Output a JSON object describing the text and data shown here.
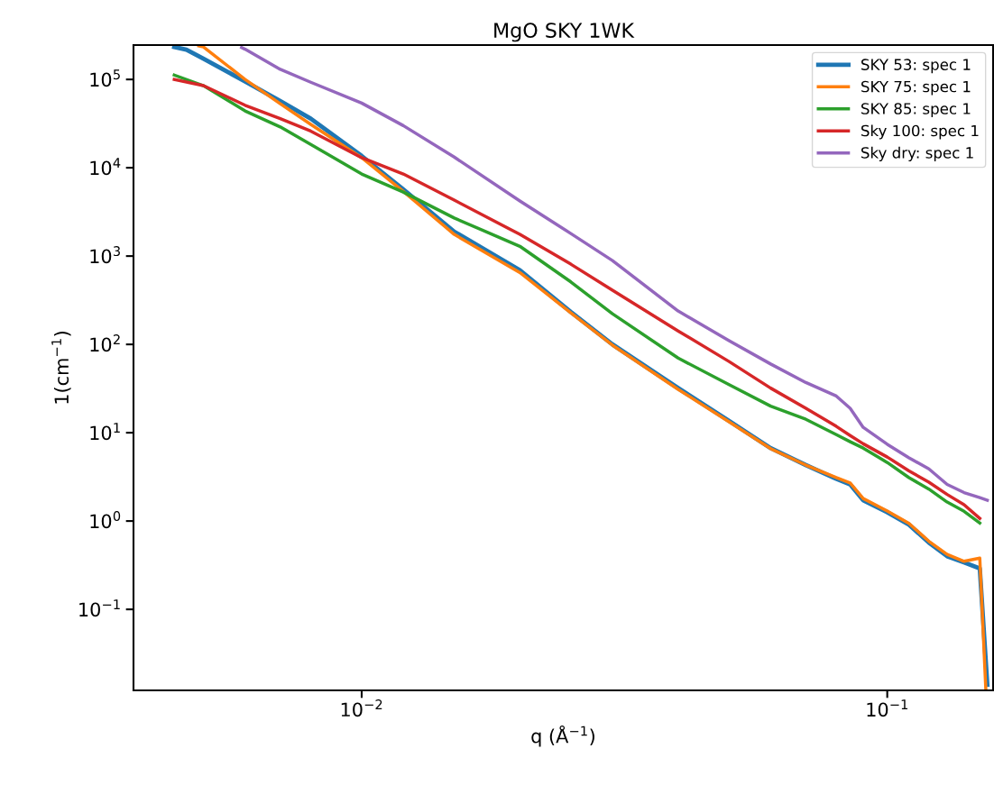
{
  "chart_data": {
    "type": "line",
    "title": "MgO SKY 1WK",
    "xlabel": "q (Å$^{−1}$)",
    "ylabel": "1(cm$^{−1}$)",
    "log": "xy",
    "xlim": [
      0.00368,
      0.159
    ],
    "ylim": [
      0.0121,
      245000
    ],
    "xticks": [
      {
        "value": 0.01,
        "label": "10$^{−2}$"
      },
      {
        "value": 0.1,
        "label": "10$^{−1}$"
      }
    ],
    "yticks": [
      {
        "value": 0.1,
        "label": "10$^{−1}$"
      },
      {
        "value": 1,
        "label": "10$^{0}$"
      },
      {
        "value": 10,
        "label": "10$^{1}$"
      },
      {
        "value": 100,
        "label": "10$^{2}$"
      },
      {
        "value": 1000,
        "label": "10$^{3}$"
      },
      {
        "value": 10000,
        "label": "10$^{4}$"
      },
      {
        "value": 100000,
        "label": "10$^{5}$"
      }
    ],
    "grid": false,
    "legend": "top right",
    "marker": "none",
    "line_style": "solid",
    "series": [
      {
        "name": "SKY 53: spec 1",
        "color": "#1f77b4",
        "x": [
          0.0044,
          0.00464,
          0.005,
          0.006,
          0.007,
          0.008,
          0.01,
          0.012,
          0.015,
          0.02,
          0.025,
          0.03,
          0.04,
          0.05,
          0.06,
          0.07,
          0.08,
          0.085,
          0.09,
          0.1,
          0.11,
          0.12,
          0.13,
          0.14,
          0.15,
          0.155
        ],
        "values": [
          233000,
          217000,
          172000,
          95000,
          57000,
          36000,
          13600,
          5700,
          1890,
          690,
          233,
          100,
          32,
          13.6,
          6.7,
          4.3,
          3.0,
          2.6,
          1.72,
          1.26,
          0.91,
          0.57,
          0.4,
          0.34,
          0.29,
          0.014
        ]
      },
      {
        "name": "SKY 75: spec 1",
        "color": "#ff7f0e",
        "x": [
          0.0049,
          0.005,
          0.006,
          0.007,
          0.008,
          0.01,
          0.012,
          0.015,
          0.02,
          0.025,
          0.03,
          0.04,
          0.05,
          0.06,
          0.07,
          0.08,
          0.085,
          0.09,
          0.1,
          0.11,
          0.12,
          0.13,
          0.14,
          0.15,
          0.154
        ],
        "values": [
          240000,
          233000,
          100000,
          53000,
          31000,
          13000,
          5400,
          1760,
          650,
          228,
          98,
          31,
          13.3,
          6.6,
          4.3,
          3.1,
          2.7,
          1.8,
          1.3,
          0.94,
          0.59,
          0.42,
          0.35,
          0.38,
          0.0125
        ]
      },
      {
        "name": "SKY 85: spec 1",
        "color": "#2ca02c",
        "x": [
          0.0044,
          0.005,
          0.006,
          0.007,
          0.008,
          0.01,
          0.012,
          0.015,
          0.02,
          0.025,
          0.03,
          0.04,
          0.05,
          0.06,
          0.07,
          0.08,
          0.085,
          0.09,
          0.1,
          0.11,
          0.12,
          0.13,
          0.14,
          0.15
        ],
        "values": [
          112000,
          85000,
          44000,
          29000,
          18400,
          8500,
          5300,
          2700,
          1290,
          510,
          222,
          70,
          35,
          20,
          14.2,
          9.5,
          7.9,
          6.7,
          4.6,
          3.1,
          2.3,
          1.64,
          1.29,
          0.95
        ]
      },
      {
        "name": "Sky 100: spec 1",
        "color": "#d62728",
        "x": [
          0.0044,
          0.005,
          0.006,
          0.007,
          0.008,
          0.01,
          0.012,
          0.015,
          0.02,
          0.025,
          0.03,
          0.04,
          0.05,
          0.06,
          0.07,
          0.08,
          0.085,
          0.09,
          0.1,
          0.11,
          0.12,
          0.13,
          0.14,
          0.15
        ],
        "values": [
          100000,
          85000,
          51000,
          36000,
          26000,
          13000,
          8500,
          4300,
          1760,
          810,
          410,
          142,
          64,
          32,
          18.9,
          11.8,
          9.3,
          7.5,
          5.3,
          3.7,
          2.75,
          2.0,
          1.53,
          1.07
        ]
      },
      {
        "name": "Sky dry: spec 1",
        "color": "#9467bd",
        "x": [
          0.00591,
          0.006,
          0.007,
          0.008,
          0.01,
          0.012,
          0.015,
          0.02,
          0.025,
          0.03,
          0.04,
          0.05,
          0.06,
          0.07,
          0.08,
          0.085,
          0.09,
          0.1,
          0.11,
          0.12,
          0.13,
          0.14,
          0.15,
          0.155
        ],
        "values": [
          230000,
          220000,
          130000,
          93000,
          54000,
          30000,
          13200,
          4200,
          1800,
          890,
          239,
          110,
          60,
          37,
          26,
          18.9,
          11.5,
          7.4,
          5.2,
          3.9,
          2.6,
          2.1,
          1.84,
          1.72
        ]
      }
    ]
  }
}
